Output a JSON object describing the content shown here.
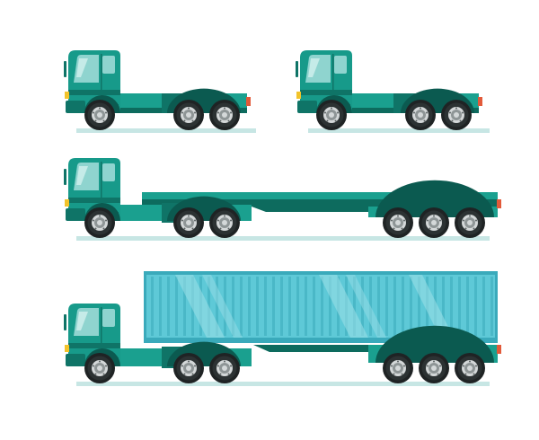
{
  "scene": {
    "background": "#ffffff",
    "colors": {
      "cab": "#179a8a",
      "container": "#5ec9d7",
      "tire": "#1f2324",
      "ground": "#c7e6e4"
    },
    "vehicles": [
      {
        "kind": "tractor-unit-three-axle",
        "axles": 3
      },
      {
        "kind": "tractor-unit-three-axle",
        "axles": 3
      },
      {
        "kind": "tractor-with-flatbed-trailer",
        "axles": 6
      },
      {
        "kind": "tractor-with-container-trailer",
        "axles": 6
      }
    ]
  }
}
